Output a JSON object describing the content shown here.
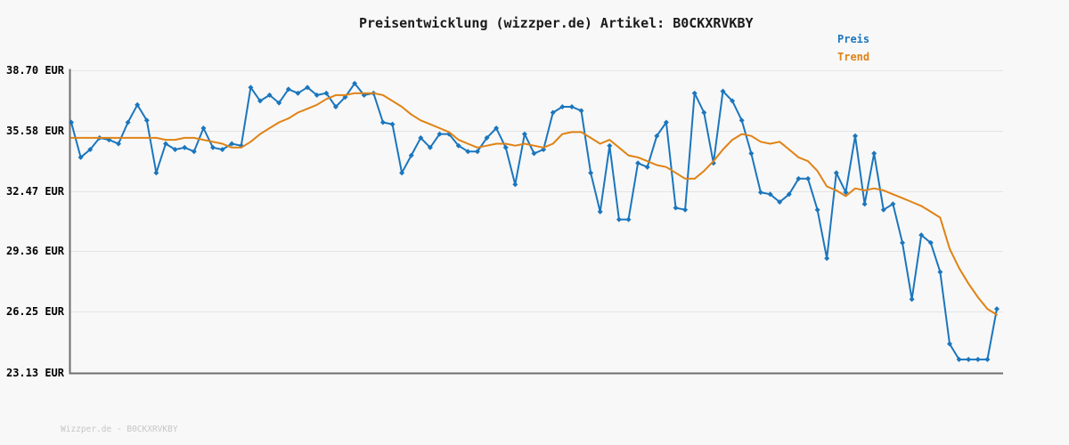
{
  "header": {
    "title": "Preisentwicklung (wizzper.de) Artikel: B0CKXRVKBY"
  },
  "legend": {
    "items": [
      {
        "label": "Preis",
        "color": "#1b76bd"
      },
      {
        "label": "Trend",
        "color": "#e08214"
      }
    ]
  },
  "y_axis": {
    "tick_labels": [
      "38.70 EUR",
      "35.58 EUR",
      "32.47 EUR",
      "29.36 EUR",
      "26.25 EUR",
      "23.13 EUR"
    ],
    "tick_values": [
      38.7,
      35.58,
      32.47,
      29.36,
      26.25,
      23.13
    ]
  },
  "footer": {
    "text": "Wizzper.de - B0CKXRVKBY"
  },
  "colors": {
    "background": "#f8f8f8",
    "grid": "#e4e4e4",
    "axis": "#6e6e6e",
    "price": "#1b76bd",
    "trend": "#e08214",
    "title_text": "#1a1a1a",
    "tick_text": "#1a1a1a",
    "footer_text": "#c6c6c6"
  },
  "chart_data": {
    "type": "line",
    "title": "Preisentwicklung (wizzper.de) Artikel: B0CKXRVKBY",
    "ylabel": "EUR",
    "ylim": [
      23.13,
      38.7
    ],
    "y_ticks": [
      38.7,
      35.58,
      32.47,
      29.36,
      26.25,
      23.13
    ],
    "grid": true,
    "legend_position": "top-right",
    "x_tick_labels_shown": false,
    "series": [
      {
        "name": "Preis",
        "color": "#1b76bd",
        "marker": "diamond",
        "values": [
          36.0,
          34.2,
          34.6,
          35.2,
          35.1,
          34.9,
          36.0,
          36.9,
          36.1,
          33.4,
          34.9,
          34.6,
          34.7,
          34.5,
          35.7,
          34.7,
          34.6,
          34.9,
          34.8,
          37.8,
          37.1,
          37.4,
          37.0,
          37.7,
          37.5,
          37.8,
          37.4,
          37.5,
          36.8,
          37.3,
          38.0,
          37.4,
          37.5,
          36.0,
          35.9,
          33.4,
          34.3,
          35.2,
          34.7,
          35.4,
          35.4,
          34.8,
          34.5,
          34.5,
          35.2,
          35.7,
          34.7,
          32.8,
          35.4,
          34.4,
          34.6,
          36.5,
          36.8,
          36.8,
          36.6,
          33.4,
          31.4,
          34.8,
          31.0,
          31.0,
          33.9,
          33.7,
          35.3,
          36.0,
          31.6,
          31.5,
          37.5,
          36.5,
          33.9,
          37.6,
          37.1,
          36.1,
          34.4,
          32.4,
          32.3,
          31.9,
          32.3,
          33.1,
          33.1,
          31.5,
          29.0,
          33.4,
          32.4,
          35.3,
          31.8,
          34.4,
          31.5,
          31.8,
          29.8,
          26.9,
          30.2,
          29.8,
          28.3,
          24.6,
          23.8,
          23.8,
          23.8,
          23.8,
          26.4
        ]
      },
      {
        "name": "Trend",
        "color": "#e08214",
        "marker": "none",
        "values": [
          35.2,
          35.2,
          35.2,
          35.2,
          35.2,
          35.2,
          35.2,
          35.2,
          35.2,
          35.2,
          35.1,
          35.1,
          35.2,
          35.2,
          35.1,
          35.0,
          34.9,
          34.7,
          34.7,
          35.0,
          35.4,
          35.7,
          36.0,
          36.2,
          36.5,
          36.7,
          36.9,
          37.2,
          37.4,
          37.4,
          37.5,
          37.5,
          37.5,
          37.4,
          37.1,
          36.8,
          36.4,
          36.1,
          35.9,
          35.7,
          35.5,
          35.1,
          34.9,
          34.7,
          34.8,
          34.9,
          34.9,
          34.8,
          34.9,
          34.8,
          34.7,
          34.9,
          35.4,
          35.5,
          35.5,
          35.2,
          34.9,
          35.1,
          34.7,
          34.3,
          34.2,
          34.0,
          33.8,
          33.7,
          33.4,
          33.1,
          33.1,
          33.5,
          34.0,
          34.6,
          35.1,
          35.4,
          35.3,
          35.0,
          34.9,
          35.0,
          34.6,
          34.2,
          34.0,
          33.5,
          32.7,
          32.5,
          32.2,
          32.6,
          32.5,
          32.6,
          32.5,
          32.3,
          32.1,
          31.9,
          31.7,
          31.4,
          31.1,
          29.5,
          28.5,
          27.7,
          27.0,
          26.4,
          26.1
        ]
      }
    ]
  }
}
